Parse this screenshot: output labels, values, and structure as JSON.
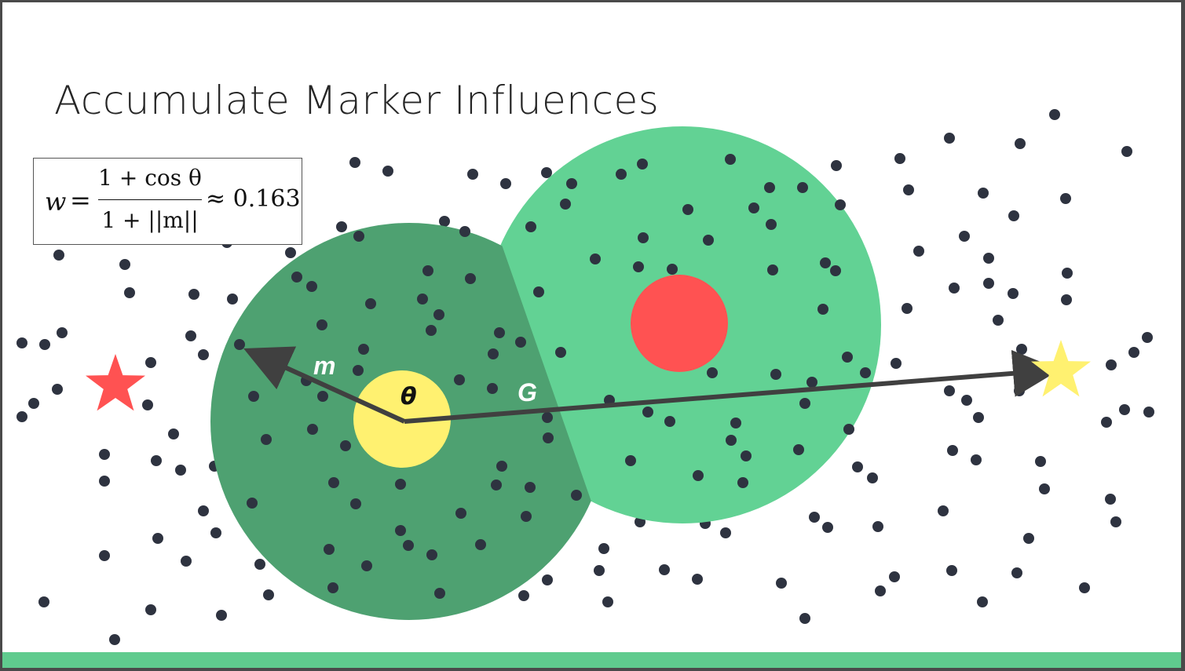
{
  "slide": {
    "title": "Accumulate Marker Influences"
  },
  "formula": {
    "lhs": "w",
    "equals": "=",
    "numerator": "1 + cos θ",
    "denominator": "1 + ||m||",
    "approx": "≈ 0.163"
  },
  "labels": {
    "m": "m",
    "theta": "θ",
    "G": "G"
  },
  "colors": {
    "dark_green": "#4ea171",
    "light_green": "#62d294",
    "red": "#ff5252",
    "yellow": "#fff170",
    "dot": "#2e3340",
    "arrow": "#404040",
    "bottom_bar": "#5fcb8e"
  },
  "legend_icons": [
    "red-star-icon",
    "yellow-star-icon"
  ]
}
